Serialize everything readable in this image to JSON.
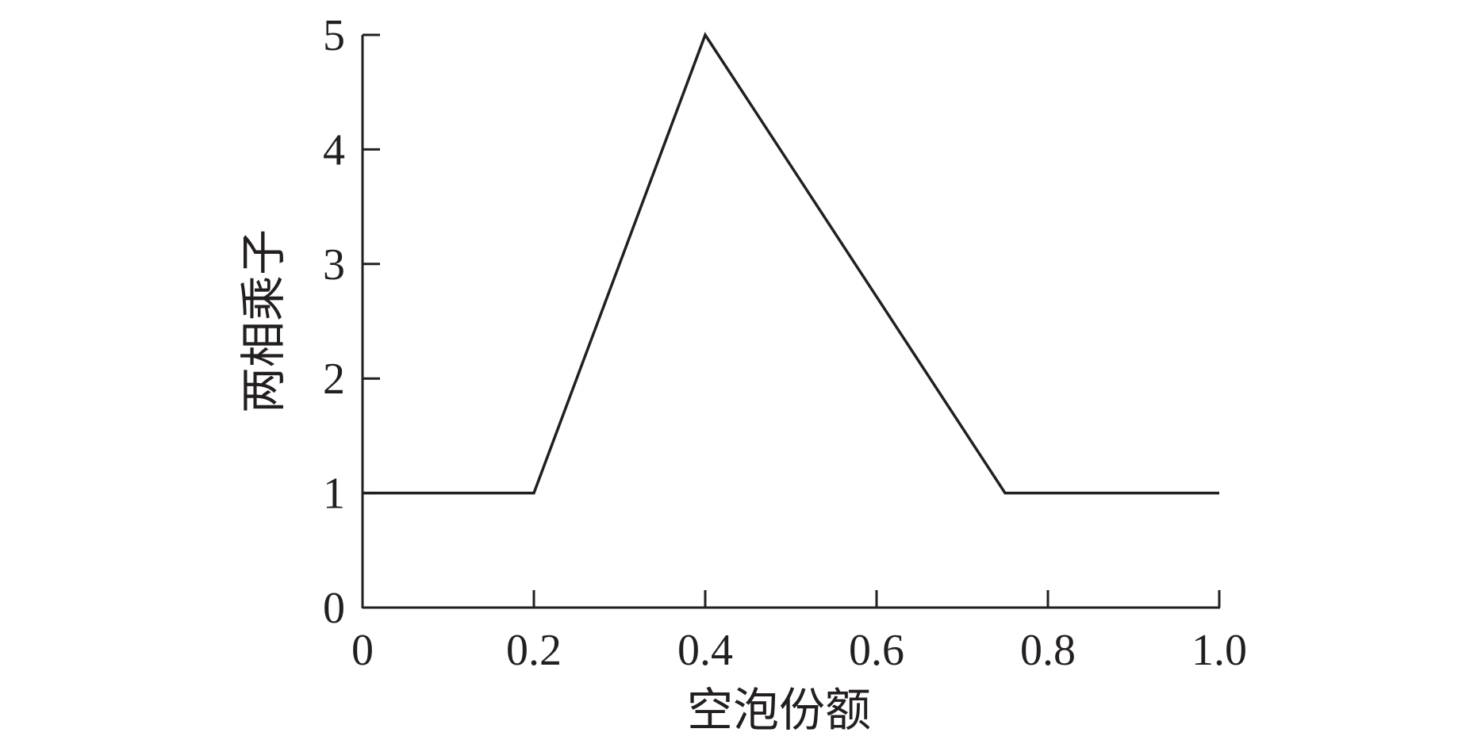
{
  "chart_data": {
    "type": "line",
    "title": "",
    "xlabel": "空泡份额",
    "ylabel": "两相乘子",
    "xlim": [
      0,
      1.0
    ],
    "ylim": [
      0,
      5
    ],
    "xticks": [
      "0",
      "0.2",
      "0.4",
      "0.6",
      "0.8",
      "1.0"
    ],
    "yticks": [
      "0",
      "1",
      "2",
      "3",
      "4",
      "5"
    ],
    "grid": false,
    "series": [
      {
        "x": [
          0,
          0.2,
          0.4,
          0.75,
          1.0
        ],
        "y": [
          1,
          1,
          5,
          1,
          1
        ],
        "color": "#231f20"
      }
    ]
  }
}
